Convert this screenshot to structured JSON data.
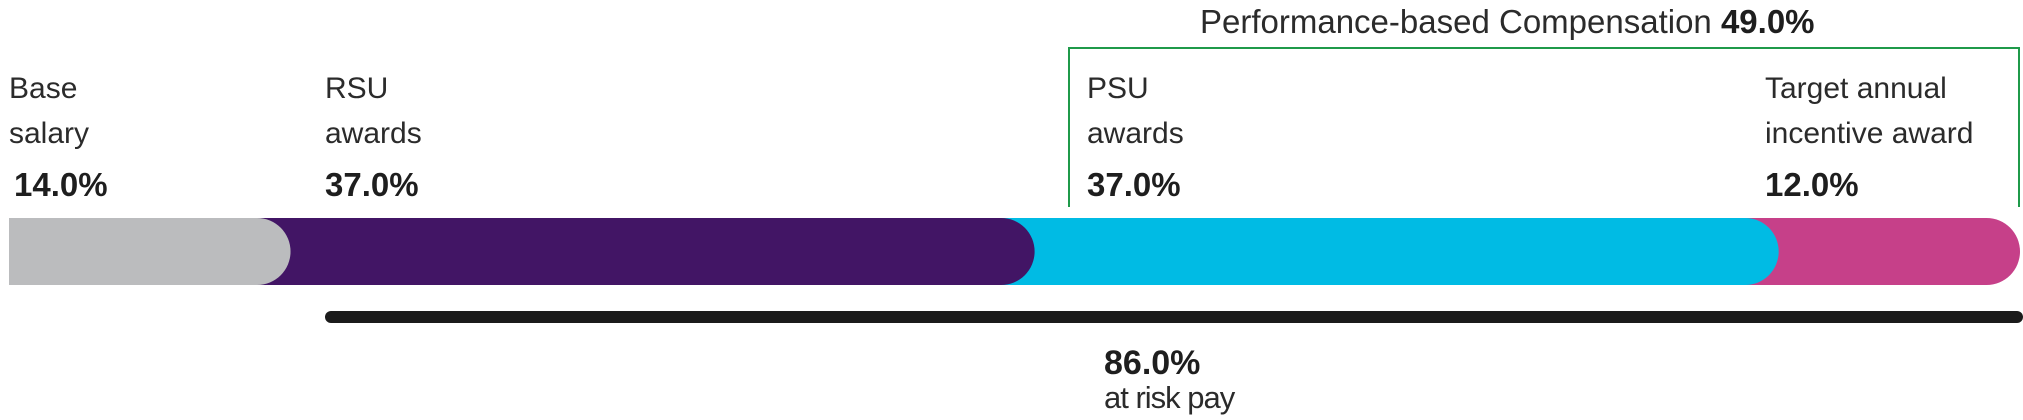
{
  "chart_data": {
    "type": "bar",
    "title": "",
    "categories": [
      "Base salary",
      "RSU awards",
      "PSU awards",
      "Target annual incentive award"
    ],
    "label_lines": [
      [
        "Base",
        "salary"
      ],
      [
        "RSU",
        "awards"
      ],
      [
        "PSU",
        "awards"
      ],
      [
        "Target annual",
        "incentive award"
      ]
    ],
    "value_labels": [
      "14.0%",
      "37.0%",
      "37.0%",
      "12.0%"
    ],
    "values": [
      14.0,
      37.0,
      37.0,
      12.0
    ],
    "colors": [
      "#bbbcbe",
      "#421565",
      "#00bbe4",
      "#c64089"
    ],
    "groups": [
      {
        "label": "Performance-based Compensation",
        "value_label": "49.0%",
        "members": [
          "PSU awards",
          "Target annual incentive award"
        ],
        "value": 49.0
      },
      {
        "label": "at risk pay",
        "value_label": "86.0%",
        "members": [
          "RSU awards",
          "PSU awards",
          "Target annual incentive award"
        ],
        "value": 86.0
      }
    ]
  }
}
